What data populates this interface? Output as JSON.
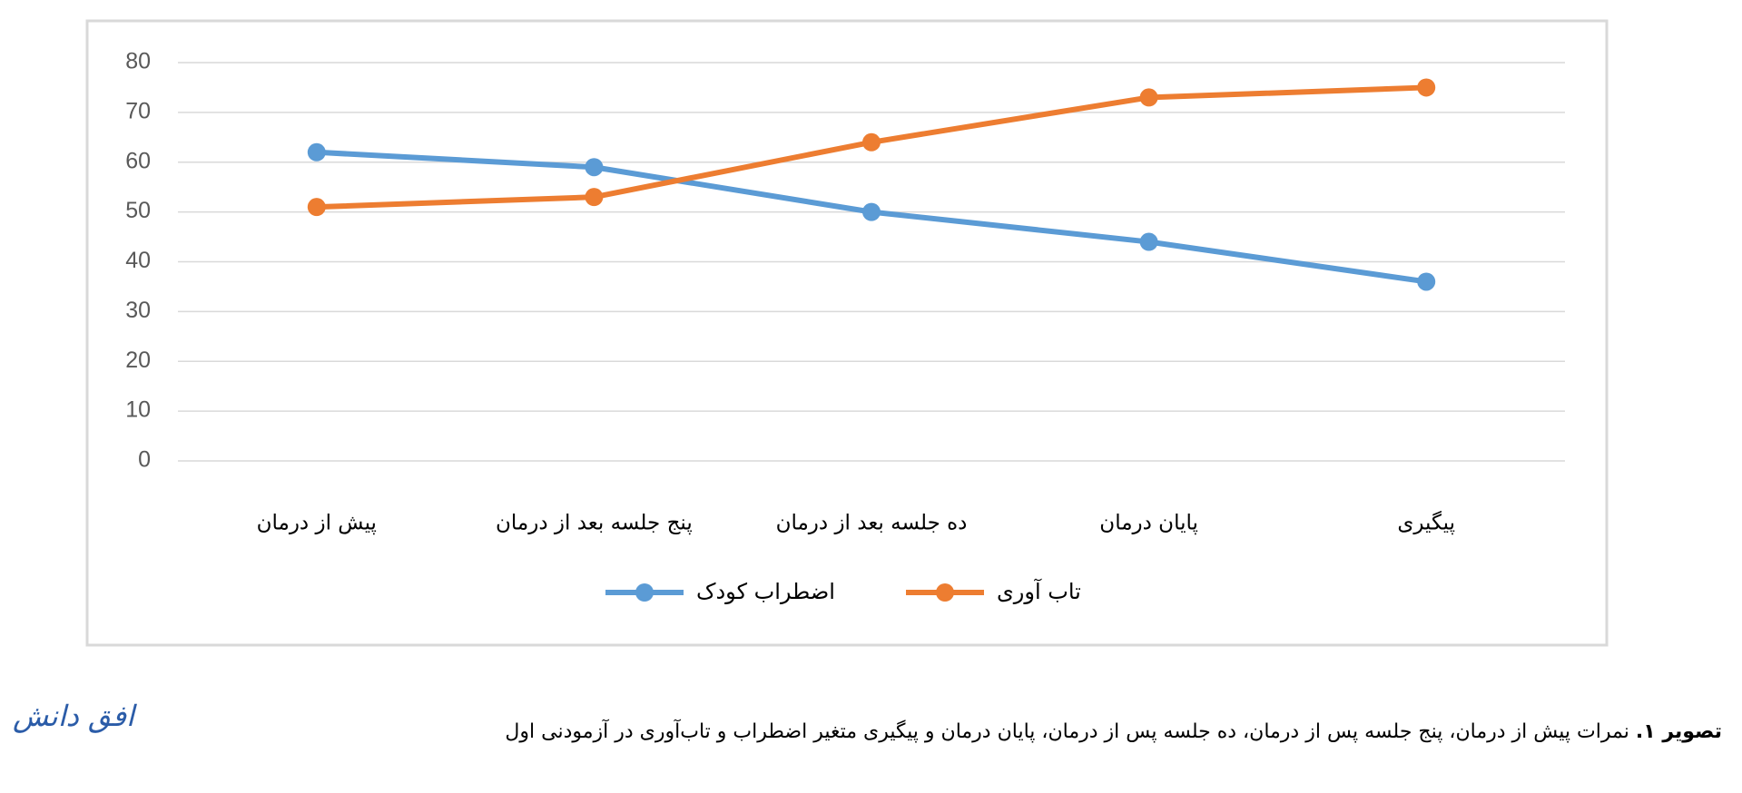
{
  "chart_data": {
    "type": "line",
    "categories": [
      "پیش از درمان",
      "پنج جلسه بعد از درمان",
      "ده جلسه بعد از درمان",
      "پایان درمان",
      "پیگیری"
    ],
    "series": [
      {
        "name": "اضطراب کودک",
        "color": "#5b9bd5",
        "values": [
          62,
          59,
          50,
          44,
          36
        ]
      },
      {
        "name": "تاب آوری",
        "color": "#ed7d31",
        "values": [
          51,
          53,
          64,
          73,
          75
        ]
      }
    ],
    "ylim": [
      0,
      80
    ],
    "yticks": [
      0,
      10,
      20,
      30,
      40,
      50,
      60,
      70,
      80
    ],
    "grid": true,
    "legend": "bottom"
  },
  "caption": {
    "label": "تصویر ۱.",
    "text": "نمرات پیش از درمان، پنج جلسه پس از درمان، ده جلسه پس از درمان، پایان درمان و پیگیری متغیر اضطراب و تاب‌آوری در آزمودنی اول"
  },
  "logo": "افق دانش"
}
